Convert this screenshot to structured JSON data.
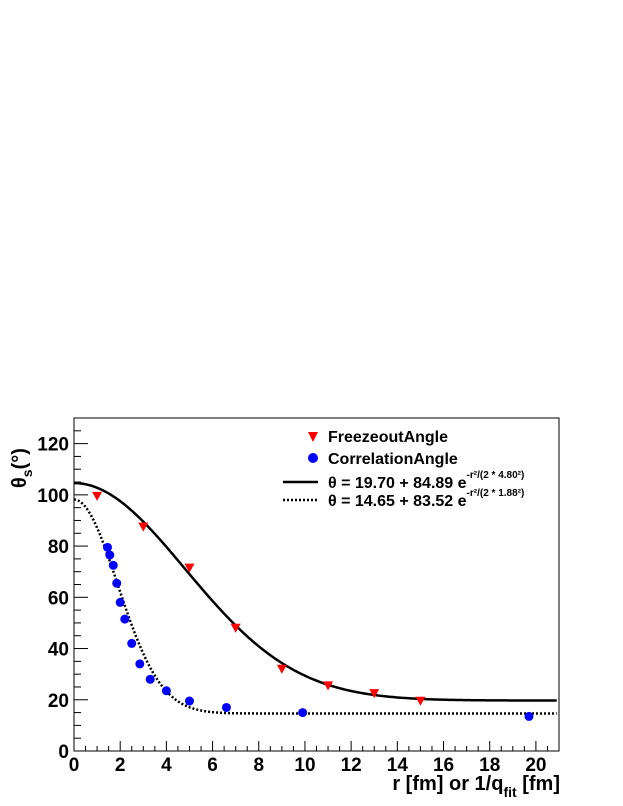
{
  "chart_data": {
    "type": "scatter",
    "xlabel": {
      "main": "r [fm] or 1/q",
      "sub": "fit",
      "tail": " [fm]"
    },
    "ylabel": {
      "main": "θ",
      "sub": "s",
      "tail": "(°)"
    },
    "xlim": [
      0,
      21
    ],
    "ylim": [
      0,
      130
    ],
    "x_ticks": [
      0,
      2,
      4,
      6,
      8,
      10,
      12,
      14,
      16,
      18,
      20
    ],
    "y_ticks": [
      0,
      20,
      40,
      60,
      80,
      100,
      120
    ],
    "grid": false,
    "legend_position": "top-right",
    "series": [
      {
        "name": "FreezeoutAngle",
        "kind": "points",
        "marker": "triangle-down",
        "color": "#ff0000",
        "x": [
          1,
          3,
          5,
          7,
          9,
          11,
          13,
          15
        ],
        "y": [
          99.5,
          87.5,
          71.5,
          48,
          32,
          25.5,
          22.5,
          19.5
        ]
      },
      {
        "name": "CorrelationAngle",
        "kind": "points",
        "marker": "circle",
        "color": "#0000ff",
        "x": [
          1.45,
          1.55,
          1.7,
          1.85,
          2.0,
          2.2,
          2.5,
          2.85,
          3.3,
          4.0,
          5.0,
          6.6,
          9.9,
          19.7
        ],
        "y": [
          79.5,
          76.5,
          72.5,
          65.5,
          58,
          51.5,
          42,
          34,
          28,
          23.5,
          19.5,
          17,
          15,
          13.5
        ]
      },
      {
        "name": "θ = 19.70 + 84.89 e",
        "exponent": "-r²/(2 * 4.80²)",
        "kind": "fit",
        "dash": "solid",
        "color": "#000000",
        "a": 19.7,
        "b": 84.89,
        "sigma": 4.8
      },
      {
        "name": "θ = 14.65 + 83.52 e",
        "exponent": "-r²/(2 * 1.88²)",
        "kind": "fit",
        "dash": "dotted",
        "color": "#000000",
        "a": 14.65,
        "b": 83.52,
        "sigma": 1.88
      }
    ]
  }
}
